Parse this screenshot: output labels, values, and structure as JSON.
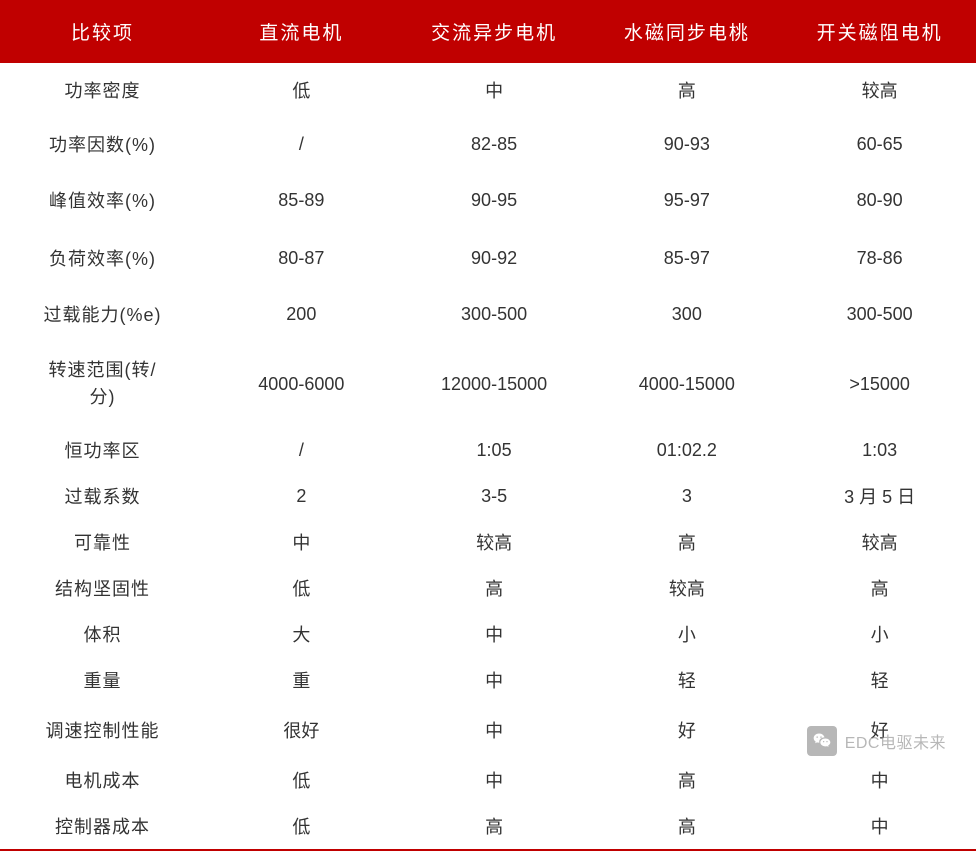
{
  "table": {
    "header_bg": "#c00000",
    "header_fg": "#ffffff",
    "cell_fg": "#333333",
    "border_bottom_color": "#c00000",
    "columns": [
      "比较项",
      "直流电机",
      "交流异步电机",
      "水磁同步电桃",
      "开关磁阻电机"
    ],
    "rows": [
      {
        "label": "功率密度",
        "cells": [
          "低",
          "中",
          "高",
          "较高"
        ],
        "class": "tall-row"
      },
      {
        "label": "功率因数(%)",
        "cells": [
          "/",
          "82-85",
          "90-93",
          "60-65"
        ],
        "class": "tall-row"
      },
      {
        "label": "峰值效率(%)",
        "cells": [
          "85-89",
          "90-95",
          "95-97",
          "80-90"
        ],
        "class": "taller-row"
      },
      {
        "label": "负荷效率(%)",
        "cells": [
          "80-87",
          "90-92",
          "85-97",
          "78-86"
        ],
        "class": "taller-row"
      },
      {
        "label": "过载能力(%e)",
        "cells": [
          "200",
          "300-500",
          "300",
          "300-500"
        ],
        "class": "tall-row"
      },
      {
        "label": "转速范围(转/分)",
        "cells": [
          "4000-6000",
          "12000-15000",
          "4000-15000",
          ">15000"
        ],
        "class": "taller-row",
        "wrap": true
      },
      {
        "label": "恒功率区",
        "cells": [
          "/",
          "1:05",
          "01:02.2",
          "1:03"
        ],
        "class": ""
      },
      {
        "label": "过载系数",
        "cells": [
          "2",
          "3-5",
          "3",
          "3 月 5 日"
        ],
        "class": ""
      },
      {
        "label": "可靠性",
        "cells": [
          "中",
          "较高",
          "高",
          "较高"
        ],
        "class": ""
      },
      {
        "label": "结构坚固性",
        "cells": [
          "低",
          "高",
          "较高",
          "高"
        ],
        "class": ""
      },
      {
        "label": "体积",
        "cells": [
          "大",
          "中",
          "小",
          "小"
        ],
        "class": ""
      },
      {
        "label": "重量",
        "cells": [
          "重",
          "中",
          "轻",
          "轻"
        ],
        "class": ""
      },
      {
        "label": "调速控制性能",
        "cells": [
          "很好",
          "中",
          "好",
          "好"
        ],
        "class": "tall-row"
      },
      {
        "label": "电机成本",
        "cells": [
          "低",
          "中",
          "高",
          "中"
        ],
        "class": ""
      },
      {
        "label": "控制器成本",
        "cells": [
          "低",
          "高",
          "高",
          "中"
        ],
        "class": ""
      }
    ]
  },
  "watermark": {
    "text": "EDC电驱未来",
    "icon_name": "wechat-icon"
  }
}
